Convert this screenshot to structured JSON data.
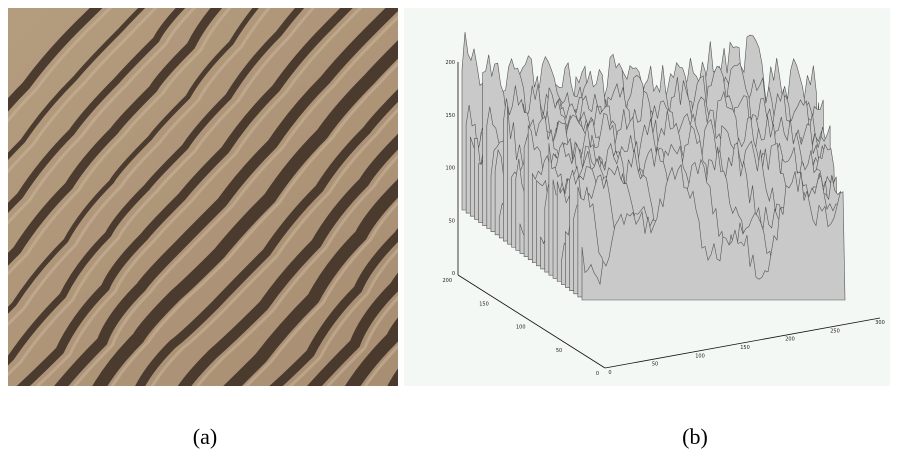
{
  "panel_a": {
    "caption": "(a)"
  },
  "panel_b": {
    "caption": "(b)",
    "z_ticks": [
      "200",
      "150",
      "100",
      "50",
      "0"
    ],
    "y_ticks": [
      "200",
      "150",
      "100",
      "50",
      "0"
    ],
    "x_ticks": [
      "0",
      "50",
      "100",
      "150",
      "200",
      "250",
      "300"
    ]
  }
}
